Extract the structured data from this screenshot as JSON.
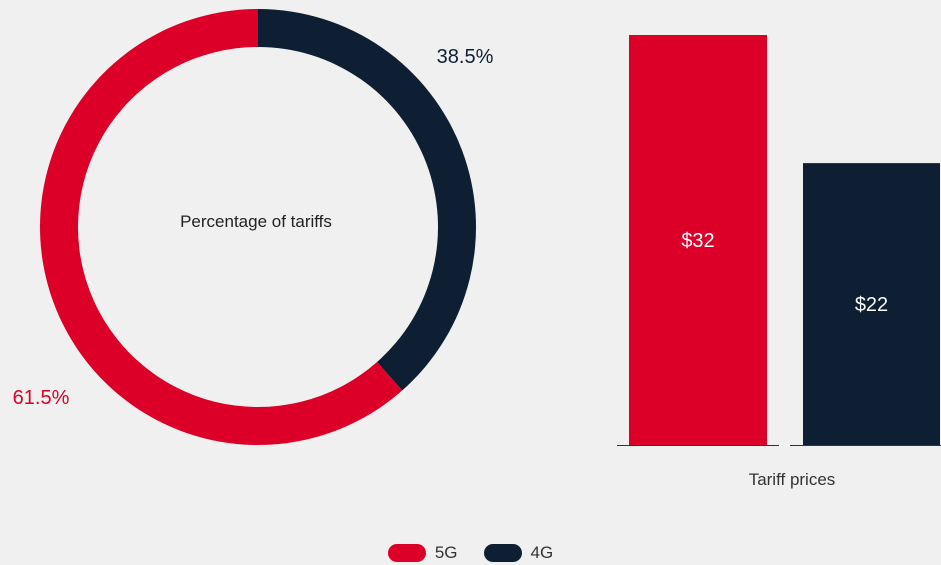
{
  "colors": {
    "5G": "#dc0028",
    "4G": "#0e1f33",
    "background": "#f0f0f0"
  },
  "chart_data": [
    {
      "type": "pie",
      "variant": "donut",
      "title": "Percentage of tariffs",
      "labels": [
        "5G",
        "4G"
      ],
      "values": [
        61.5,
        38.5
      ],
      "value_labels": [
        "61.5%",
        "38.5%"
      ],
      "colors": [
        "#dc0028",
        "#0e1f33"
      ]
    },
    {
      "type": "bar",
      "xlabel": "Tariff prices",
      "categories": [
        "5G",
        "4G"
      ],
      "values": [
        32,
        22
      ],
      "value_labels": [
        "$32",
        "$22"
      ],
      "colors": [
        "#dc0028",
        "#0e1f33"
      ],
      "ylim": [
        0,
        32
      ]
    }
  ],
  "legend": [
    {
      "label": "5G",
      "color": "#dc0028"
    },
    {
      "label": "4G",
      "color": "#0e1f33"
    }
  ]
}
